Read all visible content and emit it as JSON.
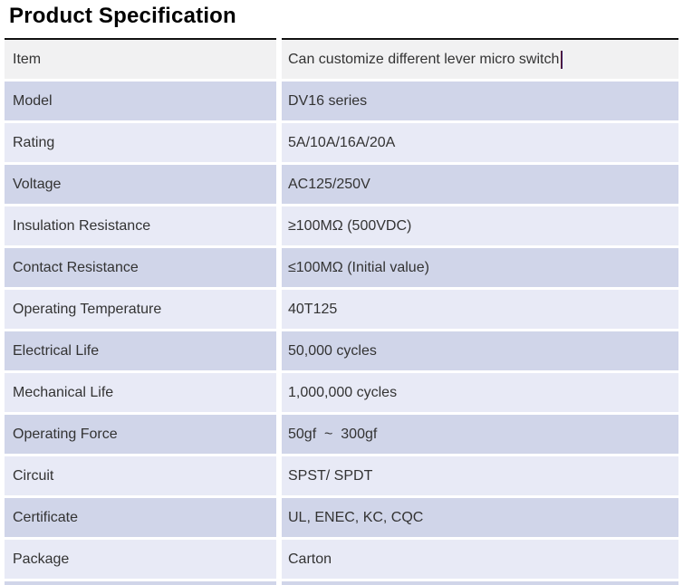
{
  "page": {
    "title": "Product Specification"
  },
  "table": {
    "rows": [
      {
        "label": "Item",
        "value": "Can customize different lever micro switch"
      },
      {
        "label": "Model",
        "value": "DV16 series"
      },
      {
        "label": "Rating",
        "value": "5A/10A/16A/20A"
      },
      {
        "label": "Voltage",
        "value": "AC125/250V"
      },
      {
        "label": "Insulation Resistance",
        "value": "≥100MΩ (500VDC)"
      },
      {
        "label": "Contact Resistance",
        "value": "≤100MΩ (Initial value)"
      },
      {
        "label": "Operating Temperature",
        "value": "40T125"
      },
      {
        "label": "Electrical Life",
        "value": "50,000 cycles"
      },
      {
        "label": "Mechanical Life",
        "value": "1,000,000 cycles"
      },
      {
        "label": "Operating Force",
        "value": "50gf  ~  300gf"
      },
      {
        "label": "Circuit",
        "value": "SPST/ SPDT"
      },
      {
        "label": "Certificate",
        "value": "UL, ENEC, KC, CQC"
      },
      {
        "label": "Package",
        "value": "Carton"
      }
    ]
  },
  "colors": {
    "header_row_bg": "#f1f1f2",
    "row_alt_dark": "#d0d5e9",
    "row_alt_light": "#e8eaf6",
    "top_border": "#111111",
    "text": "#333333",
    "title": "#000000"
  }
}
